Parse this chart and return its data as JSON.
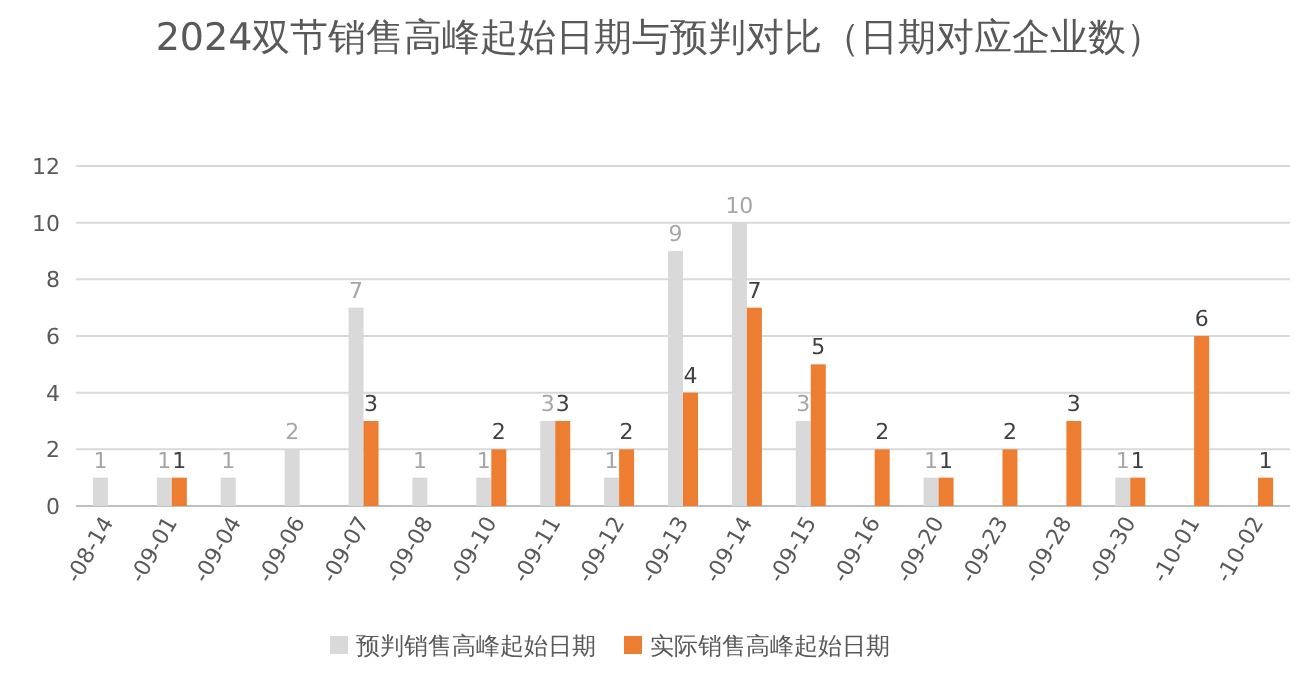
{
  "chart_data": {
    "type": "bar",
    "title": "2024双节销售高峰起始日期与预判对比（日期对应企业数）",
    "categories": [
      "-08-14",
      "-09-01",
      "-09-04",
      "-09-06",
      "-09-07",
      "-09-08",
      "-09-10",
      "-09-11",
      "-09-12",
      "-09-13",
      "-09-14",
      "-09-15",
      "-09-16",
      "-09-20",
      "-09-23",
      "-09-28",
      "-09-30",
      "-10-01",
      "-10-02"
    ],
    "series": [
      {
        "name": "预判销售高峰起始日期",
        "color": "#d9d9d9",
        "values": [
          1,
          1,
          1,
          2,
          7,
          1,
          1,
          3,
          1,
          9,
          10,
          3,
          null,
          1,
          null,
          null,
          1,
          null,
          null
        ]
      },
      {
        "name": "实际销售高峰起始日期",
        "color": "#ed7d31",
        "values": [
          null,
          1,
          null,
          null,
          3,
          null,
          2,
          3,
          2,
          4,
          7,
          5,
          2,
          1,
          2,
          3,
          1,
          6,
          1
        ]
      }
    ],
    "ylim": [
      0,
      12
    ],
    "yticks": [
      0,
      2,
      4,
      6,
      8,
      10,
      12
    ],
    "grid": "y",
    "legend": "bottom",
    "data_labels": true
  }
}
